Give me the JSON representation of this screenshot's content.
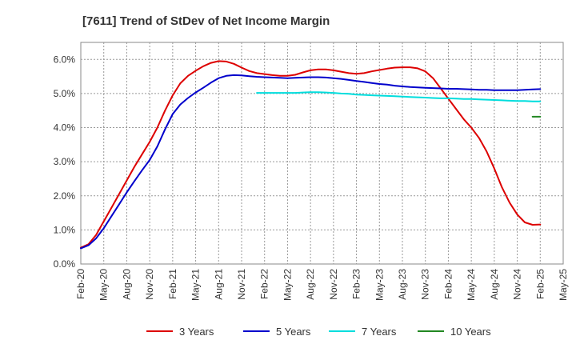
{
  "chart_data": {
    "type": "line",
    "title": "[7611]  Trend of StDev of Net Income Margin",
    "xlabel": "",
    "ylabel": "",
    "ylim": [
      0,
      0.065
    ],
    "y_ticks": [
      0,
      0.01,
      0.02,
      0.03,
      0.04,
      0.05,
      0.06
    ],
    "y_tick_labels": [
      "0.0%",
      "1.0%",
      "2.0%",
      "3.0%",
      "4.0%",
      "5.0%",
      "6.0%"
    ],
    "x_ticks": [
      "2020-02",
      "2020-05",
      "2020-08",
      "2020-11",
      "2021-02",
      "2021-05",
      "2021-08",
      "2021-11",
      "2022-02",
      "2022-05",
      "2022-08",
      "2022-11",
      "2023-02",
      "2023-05",
      "2023-08",
      "2023-11",
      "2024-02",
      "2024-05",
      "2024-08",
      "2024-11",
      "2025-02",
      "2025-05"
    ],
    "x_tick_labels": [
      "Feb-20",
      "May-20",
      "Aug-20",
      "Nov-20",
      "Feb-21",
      "May-21",
      "Aug-21",
      "Nov-21",
      "Feb-22",
      "May-22",
      "Aug-22",
      "Nov-22",
      "Feb-23",
      "May-23",
      "Aug-23",
      "Nov-23",
      "Feb-24",
      "May-24",
      "Aug-24",
      "Nov-24",
      "Feb-25",
      "May-25"
    ],
    "grid": true,
    "legend_position": "bottom",
    "series": [
      {
        "name": "3 Years",
        "color": "#dd0000",
        "x": [
          "2020-02",
          "2020-03",
          "2020-04",
          "2020-05",
          "2020-06",
          "2020-07",
          "2020-08",
          "2020-09",
          "2020-10",
          "2020-11",
          "2020-12",
          "2021-01",
          "2021-02",
          "2021-03",
          "2021-04",
          "2021-05",
          "2021-06",
          "2021-07",
          "2021-08",
          "2021-09",
          "2021-10",
          "2021-11",
          "2021-12",
          "2022-01",
          "2022-02",
          "2022-03",
          "2022-04",
          "2022-05",
          "2022-06",
          "2022-07",
          "2022-08",
          "2022-09",
          "2022-10",
          "2022-11",
          "2022-12",
          "2023-01",
          "2023-02",
          "2023-03",
          "2023-04",
          "2023-05",
          "2023-06",
          "2023-07",
          "2023-08",
          "2023-09",
          "2023-10",
          "2023-11",
          "2023-12",
          "2024-01",
          "2024-02",
          "2024-03",
          "2024-04",
          "2024-05",
          "2024-06",
          "2024-07",
          "2024-08",
          "2024-09",
          "2024-10",
          "2024-11",
          "2024-12",
          "2025-01",
          "2025-02"
        ],
        "values": [
          0.0048,
          0.0058,
          0.0085,
          0.0125,
          0.0165,
          0.0205,
          0.0245,
          0.0285,
          0.0322,
          0.0358,
          0.04,
          0.045,
          0.0495,
          0.053,
          0.0552,
          0.0567,
          0.058,
          0.059,
          0.0595,
          0.0594,
          0.0587,
          0.0576,
          0.0566,
          0.056,
          0.0557,
          0.0554,
          0.0552,
          0.0552,
          0.0555,
          0.0562,
          0.0568,
          0.0571,
          0.0571,
          0.0568,
          0.0564,
          0.056,
          0.0558,
          0.056,
          0.0565,
          0.0569,
          0.0573,
          0.0576,
          0.0577,
          0.0577,
          0.0574,
          0.0565,
          0.0545,
          0.0515,
          0.0485,
          0.0455,
          0.0425,
          0.04,
          0.037,
          0.033,
          0.028,
          0.0225,
          0.018,
          0.0145,
          0.0122,
          0.0115,
          0.0116
        ]
      },
      {
        "name": "5 Years",
        "color": "#0000cc",
        "x": [
          "2020-02",
          "2020-03",
          "2020-04",
          "2020-05",
          "2020-06",
          "2020-07",
          "2020-08",
          "2020-09",
          "2020-10",
          "2020-11",
          "2020-12",
          "2021-01",
          "2021-02",
          "2021-03",
          "2021-04",
          "2021-05",
          "2021-06",
          "2021-07",
          "2021-08",
          "2021-09",
          "2021-10",
          "2021-11",
          "2021-12",
          "2022-01",
          "2022-02",
          "2022-03",
          "2022-04",
          "2022-05",
          "2022-06",
          "2022-07",
          "2022-08",
          "2022-09",
          "2022-10",
          "2022-11",
          "2022-12",
          "2023-01",
          "2023-02",
          "2023-03",
          "2023-04",
          "2023-05",
          "2023-06",
          "2023-07",
          "2023-08",
          "2023-09",
          "2023-10",
          "2023-11",
          "2023-12",
          "2024-01",
          "2024-02",
          "2024-03",
          "2024-04",
          "2024-05",
          "2024-06",
          "2024-07",
          "2024-08",
          "2024-09",
          "2024-10",
          "2024-11",
          "2024-12",
          "2025-01",
          "2025-02"
        ],
        "values": [
          0.0046,
          0.0055,
          0.0075,
          0.0105,
          0.014,
          0.0175,
          0.021,
          0.0243,
          0.0275,
          0.0305,
          0.0345,
          0.0395,
          0.044,
          0.0468,
          0.0487,
          0.0503,
          0.0517,
          0.0532,
          0.0545,
          0.0552,
          0.0554,
          0.0553,
          0.0551,
          0.0549,
          0.0548,
          0.0547,
          0.0546,
          0.0545,
          0.0546,
          0.0547,
          0.0548,
          0.0548,
          0.0547,
          0.0545,
          0.0543,
          0.054,
          0.0537,
          0.0534,
          0.0531,
          0.0528,
          0.0526,
          0.0523,
          0.0521,
          0.0519,
          0.0518,
          0.0517,
          0.0516,
          0.0515,
          0.0514,
          0.0514,
          0.0513,
          0.0512,
          0.0511,
          0.0511,
          0.051,
          0.051,
          0.051,
          0.051,
          0.0511,
          0.0512,
          0.0513
        ]
      },
      {
        "name": "7 Years",
        "color": "#00dddd",
        "x": [
          "2022-01",
          "2022-02",
          "2022-03",
          "2022-04",
          "2022-05",
          "2022-06",
          "2022-07",
          "2022-08",
          "2022-09",
          "2022-10",
          "2022-11",
          "2022-12",
          "2023-01",
          "2023-02",
          "2023-03",
          "2023-04",
          "2023-05",
          "2023-06",
          "2023-07",
          "2023-08",
          "2023-09",
          "2023-10",
          "2023-11",
          "2023-12",
          "2024-01",
          "2024-02",
          "2024-03",
          "2024-04",
          "2024-05",
          "2024-06",
          "2024-07",
          "2024-08",
          "2024-09",
          "2024-10",
          "2024-11",
          "2024-12",
          "2025-01",
          "2025-02"
        ],
        "values": [
          0.0502,
          0.0502,
          0.0502,
          0.0502,
          0.0502,
          0.0502,
          0.0503,
          0.0504,
          0.0504,
          0.0503,
          0.0502,
          0.05,
          0.0499,
          0.0497,
          0.0496,
          0.0495,
          0.0494,
          0.0493,
          0.0492,
          0.0491,
          0.049,
          0.0489,
          0.0488,
          0.0487,
          0.0486,
          0.0486,
          0.0485,
          0.0484,
          0.0484,
          0.0483,
          0.0482,
          0.0481,
          0.048,
          0.0479,
          0.0478,
          0.0478,
          0.0477,
          0.0477
        ]
      },
      {
        "name": "10 Years",
        "color": "#228822",
        "x": [
          "2025-01",
          "2025-02"
        ],
        "values": [
          0.0432,
          0.0432
        ]
      }
    ]
  }
}
